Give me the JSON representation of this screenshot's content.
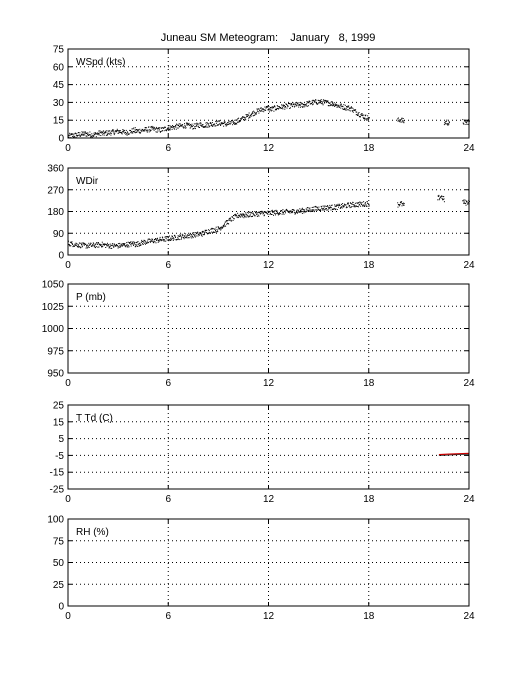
{
  "title": "Juneau SM Meteogram:    January   8, 1999",
  "chart_data": [
    {
      "type": "scatter",
      "label": "WSpd (kts)",
      "xlim": [
        0,
        24
      ],
      "ylim": [
        0,
        75
      ],
      "xticks": [
        "0",
        "6",
        "12",
        "18",
        "24"
      ],
      "yticks": [
        "0",
        "15",
        "30",
        "45",
        "60",
        "75"
      ],
      "grid": true,
      "color": "#000000",
      "segments": [
        {
          "x0": 0,
          "x1": 2,
          "y": [
            2,
            3,
            4,
            3,
            5
          ]
        },
        {
          "x0": 2,
          "x1": 4,
          "y": [
            4,
            5,
            6,
            5,
            7
          ]
        },
        {
          "x0": 4,
          "x1": 6,
          "y": [
            6,
            7,
            8,
            7,
            9
          ]
        },
        {
          "x0": 6,
          "x1": 8,
          "y": [
            9,
            10,
            11,
            10,
            12
          ]
        },
        {
          "x0": 8,
          "x1": 10,
          "y": [
            11,
            12,
            13,
            12,
            14
          ]
        },
        {
          "x0": 10,
          "x1": 12,
          "y": [
            14,
            17,
            21,
            24,
            26
          ]
        },
        {
          "x0": 12,
          "x1": 14,
          "y": [
            24,
            26,
            27,
            28,
            28
          ]
        },
        {
          "x0": 14,
          "x1": 16,
          "y": [
            28,
            30,
            31,
            30,
            29
          ]
        },
        {
          "x0": 16,
          "x1": 17,
          "y": [
            28,
            27,
            26,
            25
          ]
        },
        {
          "x0": 17,
          "x1": 18,
          "y": [
            24,
            22,
            20,
            18,
            17
          ]
        },
        {
          "x0": 19.7,
          "x1": 20.1,
          "y": [
            15,
            16,
            14
          ]
        },
        {
          "x0": 22.5,
          "x1": 22.8,
          "y": [
            13,
            14,
            12
          ]
        },
        {
          "x0": 23.6,
          "x1": 24,
          "y": [
            14,
            13,
            15
          ]
        }
      ]
    },
    {
      "type": "scatter",
      "label": "WDir",
      "xlim": [
        0,
        24
      ],
      "ylim": [
        0,
        360
      ],
      "xticks": [
        "0",
        "6",
        "12",
        "18",
        "24"
      ],
      "yticks": [
        "0",
        "90",
        "180",
        "270",
        "360"
      ],
      "grid": true,
      "color": "#000000",
      "segments": [
        {
          "x0": 0,
          "x1": 2,
          "y": [
            50,
            45,
            40,
            42,
            45
          ]
        },
        {
          "x0": 2,
          "x1": 4,
          "y": [
            45,
            40,
            40,
            45,
            50
          ]
        },
        {
          "x0": 4,
          "x1": 6,
          "y": [
            45,
            55,
            60,
            65,
            70
          ]
        },
        {
          "x0": 6,
          "x1": 8,
          "y": [
            70,
            75,
            80,
            85,
            90
          ]
        },
        {
          "x0": 8,
          "x1": 9,
          "y": [
            90,
            100,
            105,
            110
          ]
        },
        {
          "x0": 9,
          "x1": 10.5,
          "y": [
            110,
            130,
            150,
            165,
            170
          ]
        },
        {
          "x0": 10.5,
          "x1": 12,
          "y": [
            165,
            170,
            172,
            175,
            175
          ]
        },
        {
          "x0": 12,
          "x1": 14,
          "y": [
            175,
            178,
            180,
            182,
            185
          ]
        },
        {
          "x0": 14,
          "x1": 16,
          "y": [
            185,
            190,
            195,
            198,
            200
          ]
        },
        {
          "x0": 16,
          "x1": 18,
          "y": [
            200,
            205,
            210,
            212,
            215
          ]
        },
        {
          "x0": 19.7,
          "x1": 20.1,
          "y": [
            210,
            215,
            205
          ]
        },
        {
          "x0": 22.1,
          "x1": 22.5,
          "y": [
            235,
            245,
            230
          ]
        },
        {
          "x0": 23.6,
          "x1": 24,
          "y": [
            222,
            218,
            225
          ]
        }
      ]
    },
    {
      "type": "scatter",
      "label": "P (mb)",
      "xlim": [
        0,
        24
      ],
      "ylim": [
        950,
        1050
      ],
      "xticks": [
        "0",
        "6",
        "12",
        "18",
        "24"
      ],
      "yticks": [
        "950",
        "975",
        "1000",
        "1025",
        "1050"
      ],
      "grid": true,
      "color": "#000000",
      "segments": []
    },
    {
      "type": "line",
      "label": "T Td (C)",
      "xlim": [
        0,
        24
      ],
      "ylim": [
        -25,
        25
      ],
      "xticks": [
        "0",
        "6",
        "12",
        "18",
        "24"
      ],
      "yticks": [
        "-25",
        "-15",
        "-5",
        "5",
        "15",
        "25"
      ],
      "grid": true,
      "color": "#cc0000",
      "segments": [
        {
          "x0": 22.2,
          "x1": 24,
          "y": [
            -4.5,
            -4.2,
            -4.0,
            -3.8
          ]
        }
      ]
    },
    {
      "type": "scatter",
      "label": "RH (%)",
      "xlim": [
        0,
        24
      ],
      "ylim": [
        0,
        100
      ],
      "xticks": [
        "0",
        "6",
        "12",
        "18",
        "24"
      ],
      "yticks": [
        "0",
        "25",
        "50",
        "75",
        "100"
      ],
      "grid": true,
      "color": "#000000",
      "segments": []
    }
  ]
}
